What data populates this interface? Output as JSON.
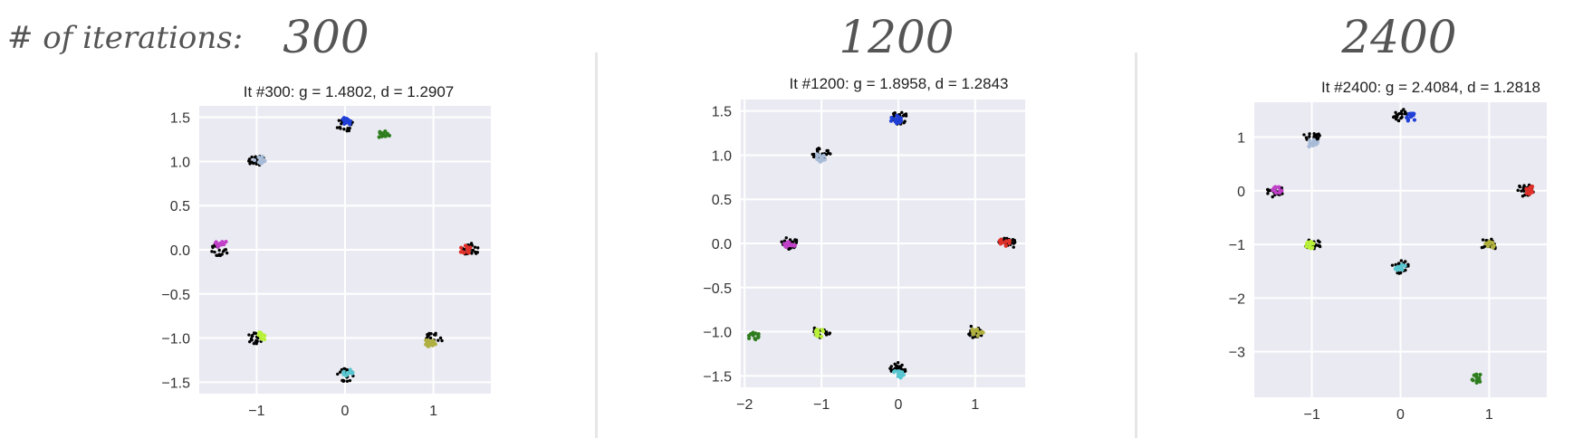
{
  "row_label": "# of iterations:",
  "chart_data": [
    {
      "type": "scatter",
      "iterations_label": "300",
      "title": "It #300: g = 1.4802, d = 1.2907",
      "xlabel": "",
      "ylabel": "",
      "xlim": [
        -1.65,
        1.65
      ],
      "ylim": [
        -1.63,
        1.63
      ],
      "x_ticks": [
        -1,
        0,
        1
      ],
      "x_tick_labels": [
        "−1",
        "0",
        "1"
      ],
      "y_ticks": [
        1.5,
        1.0,
        0.5,
        0.0,
        -0.5,
        -1.0,
        -1.5
      ],
      "y_tick_labels": [
        "1.5",
        "1.0",
        "0.5",
        "0.0",
        "−0.5",
        "−1.0",
        "−1.5"
      ],
      "grid": true,
      "series": [
        {
          "color": "#000000",
          "points": [
            [
              0.0,
              1.41
            ],
            [
              -0.99,
              1.01
            ],
            [
              -1.42,
              0.0
            ],
            [
              1.42,
              0.01
            ],
            [
              -1.0,
              -1.0
            ],
            [
              0.01,
              -1.42
            ],
            [
              1.0,
              -1.01
            ]
          ]
        },
        {
          "color": "#1f3fd6",
          "points": [
            [
              0.0,
              1.45
            ]
          ]
        },
        {
          "color": "#2e7d1e",
          "points": [
            [
              0.44,
              1.3
            ]
          ]
        },
        {
          "color": "#a8bcd8",
          "points": [
            [
              -0.96,
              1.02
            ]
          ]
        },
        {
          "color": "#c040c8",
          "points": [
            [
              -1.4,
              0.07
            ]
          ]
        },
        {
          "color": "#e0302a",
          "points": [
            [
              1.36,
              0.0
            ]
          ]
        },
        {
          "color": "#b9f03a",
          "points": [
            [
              -0.95,
              -0.98
            ]
          ]
        },
        {
          "color": "#58c6d0",
          "points": [
            [
              0.04,
              -1.4
            ]
          ]
        },
        {
          "color": "#b0b040",
          "points": [
            [
              0.97,
              -1.05
            ]
          ]
        }
      ]
    },
    {
      "type": "scatter",
      "iterations_label": "1200",
      "title": "It #1200: g = 1.8958, d = 1.2843",
      "xlabel": "",
      "ylabel": "",
      "xlim": [
        -2.05,
        1.65
      ],
      "ylim": [
        -1.63,
        1.63
      ],
      "x_ticks": [
        -2,
        -1,
        0,
        1
      ],
      "x_tick_labels": [
        "−2",
        "−1",
        "0",
        "1"
      ],
      "y_ticks": [
        1.5,
        1.0,
        0.5,
        0.0,
        -0.5,
        -1.0,
        -1.5
      ],
      "y_tick_labels": [
        "1.5",
        "1.0",
        "0.5",
        "0.0",
        "−0.5",
        "−1.0",
        "−1.5"
      ],
      "grid": true,
      "series": [
        {
          "color": "#000000",
          "points": [
            [
              0.01,
              1.42
            ],
            [
              -1.0,
              1.01
            ],
            [
              -1.42,
              0.0
            ],
            [
              1.42,
              0.0
            ],
            [
              -1.0,
              -1.0
            ],
            [
              0.0,
              -1.42
            ],
            [
              1.0,
              -1.0
            ]
          ]
        },
        {
          "color": "#1f3fd6",
          "points": [
            [
              -0.03,
              1.4
            ]
          ]
        },
        {
          "color": "#a8bcd8",
          "points": [
            [
              -1.02,
              0.97
            ]
          ]
        },
        {
          "color": "#c040c8",
          "points": [
            [
              -1.42,
              -0.03
            ]
          ]
        },
        {
          "color": "#e0302a",
          "points": [
            [
              1.38,
              0.02
            ]
          ]
        },
        {
          "color": "#2e7d1e",
          "points": [
            [
              -1.88,
              -1.05
            ]
          ]
        },
        {
          "color": "#b9f03a",
          "points": [
            [
              -1.02,
              -1.01
            ]
          ]
        },
        {
          "color": "#58c6d0",
          "points": [
            [
              0.0,
              -1.48
            ]
          ]
        },
        {
          "color": "#b0b040",
          "points": [
            [
              1.03,
              -1.0
            ]
          ]
        }
      ]
    },
    {
      "type": "scatter",
      "iterations_label": "2400",
      "title": "It #2400: g = 2.4084, d = 1.2818",
      "xlabel": "",
      "ylabel": "",
      "xlim": [
        -1.65,
        1.65
      ],
      "ylim": [
        -3.85,
        1.65
      ],
      "x_ticks": [
        -1,
        0,
        1
      ],
      "x_tick_labels": [
        "−1",
        "0",
        "1"
      ],
      "y_ticks": [
        1,
        0,
        -1,
        -2,
        -3
      ],
      "y_tick_labels": [
        "1",
        "0",
        "−1",
        "−2",
        "−3"
      ],
      "grid": true,
      "series": [
        {
          "color": "#000000",
          "points": [
            [
              0.0,
              1.41
            ],
            [
              -1.0,
              1.0
            ],
            [
              -1.42,
              0.0
            ],
            [
              1.41,
              0.0
            ],
            [
              -1.0,
              -1.0
            ],
            [
              0.0,
              -1.42
            ],
            [
              1.0,
              -1.0
            ]
          ]
        },
        {
          "color": "#1f3fd6",
          "points": [
            [
              0.12,
              1.37
            ]
          ]
        },
        {
          "color": "#a8bcd8",
          "points": [
            [
              -0.99,
              0.88
            ]
          ]
        },
        {
          "color": "#c040c8",
          "points": [
            [
              -1.4,
              0.0
            ]
          ]
        },
        {
          "color": "#e0302a",
          "points": [
            [
              1.47,
              0.01
            ]
          ]
        },
        {
          "color": "#b9f03a",
          "points": [
            [
              -1.02,
              -1.0
            ]
          ]
        },
        {
          "color": "#58c6d0",
          "points": [
            [
              -0.01,
              -1.41
            ]
          ]
        },
        {
          "color": "#b0b040",
          "points": [
            [
              1.0,
              -1.0
            ]
          ]
        },
        {
          "color": "#2e7d1e",
          "points": [
            [
              0.87,
              -3.5
            ]
          ]
        }
      ]
    }
  ]
}
